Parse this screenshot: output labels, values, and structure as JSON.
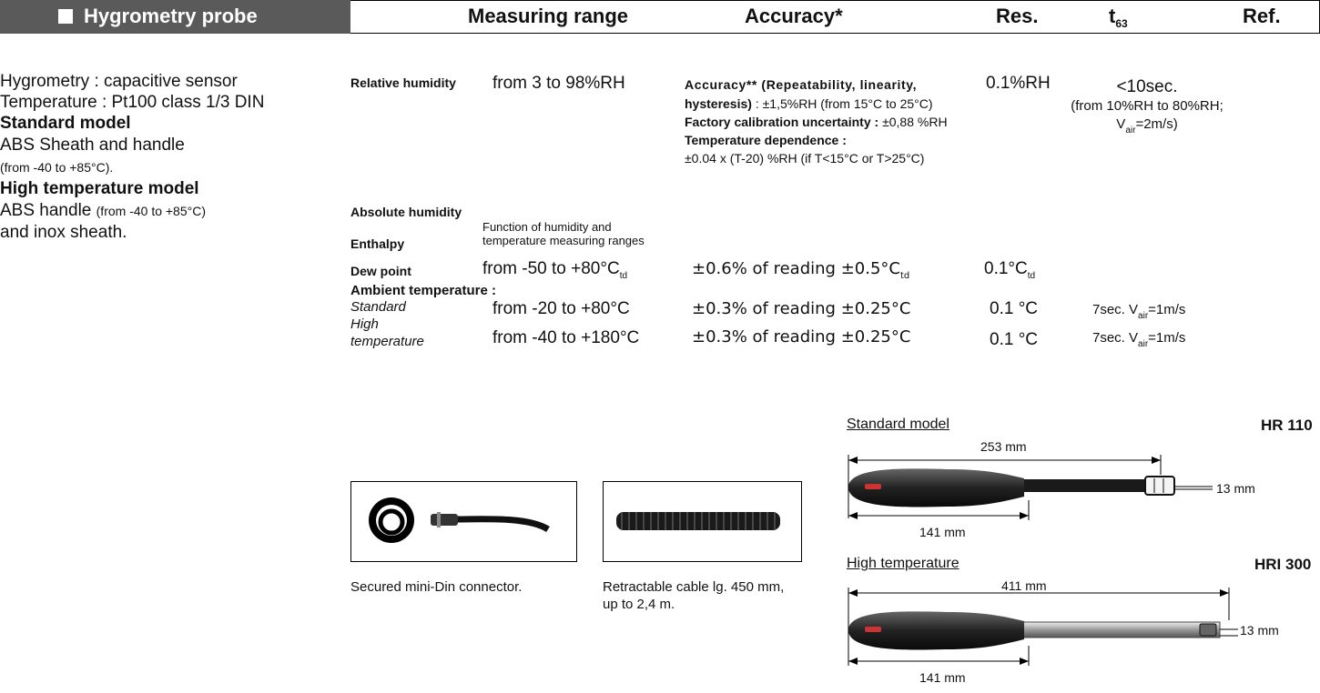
{
  "header": {
    "title": "Hygrometry probe",
    "columns": {
      "range": "Measuring range",
      "accuracy": "Accuracy*",
      "res": "Res.",
      "t63": {
        "t": "t",
        "sub": "63"
      },
      "ref": "Ref."
    }
  },
  "description": {
    "line1": "Hygrometry : capacitive sensor",
    "line2": "Temperature : Pt100 class 1/3 DIN",
    "standard_title": "Standard model",
    "standard_text": "ABS Sheath and handle",
    "standard_range": "(from -40 to +85°C).",
    "high_title": "High temperature model",
    "high_text": "ABS handle",
    "high_range": "(from -40 to +85°C)",
    "high_text2": "and inox sheath."
  },
  "rows": {
    "relative_humidity": {
      "label": "Relative humidity",
      "range": "from 3 to 98%RH",
      "accuracy": {
        "l1": "Accuracy** (Repeatability, linearity,",
        "l2a": "hysteresis)",
        "l2b": ": ±1,5%RH (from 15°C to 25°C)",
        "l3a": "Factory calibration uncertainty :",
        "l3b": "±0,88 %RH",
        "l4": "Temperature dependence :",
        "l5": "±0.04 x (T-20) %RH (if T<15°C or T>25°C)"
      },
      "res": "0.1%RH",
      "t63": {
        "l1": "<10sec.",
        "l2": "(from 10%RH to 80%RH;",
        "l3v": "V",
        "l3sub": "air",
        "l3b": "=2m/s)"
      }
    },
    "absolute_humidity": {
      "label": "Absolute humidity"
    },
    "enthalpy": {
      "label": "Enthalpy"
    },
    "shared_range": {
      "l1": "Function of humidity and",
      "l2": "temperature measuring ranges"
    },
    "dew_point": {
      "label": "Dew point",
      "range": {
        "text": "from -50 to +80°C",
        "sub": "td"
      },
      "accuracy": {
        "text": "±0.6% of reading ±0.5°C",
        "sub": "td"
      },
      "res": {
        "text": "0.1°C",
        "sub": "td"
      }
    },
    "ambient": {
      "label": "Ambient temperature :",
      "standard": {
        "label": "Standard",
        "range": "from -20 to +80°C",
        "accuracy": "±0.3% of reading ±0.25°C",
        "res": "0.1 °C",
        "t63": {
          "a": "7sec. V",
          "sub": "air",
          "b": "=1m/s"
        }
      },
      "high": {
        "label1": "High",
        "label2": "temperature",
        "range": "from -40 to +180°C",
        "accuracy": "±0.3% of reading ±0.25°C",
        "res": "0.1 °C",
        "t63": {
          "a": "7sec. V",
          "sub": "air",
          "b": "=1m/s"
        }
      }
    }
  },
  "accessories": {
    "connector": "Secured mini-Din connector.",
    "cable1": "Retractable cable lg. 450 mm,",
    "cable2": "up to 2,4 m."
  },
  "models": {
    "standard": {
      "title": "Standard model",
      "ref": "HR 110",
      "length": "253 mm",
      "handle": "141 mm",
      "diameter": "13 mm"
    },
    "high": {
      "title": "High temperature",
      "ref": "HRI 300",
      "length": "411 mm",
      "handle": "141 mm",
      "diameter": "13 mm"
    }
  }
}
